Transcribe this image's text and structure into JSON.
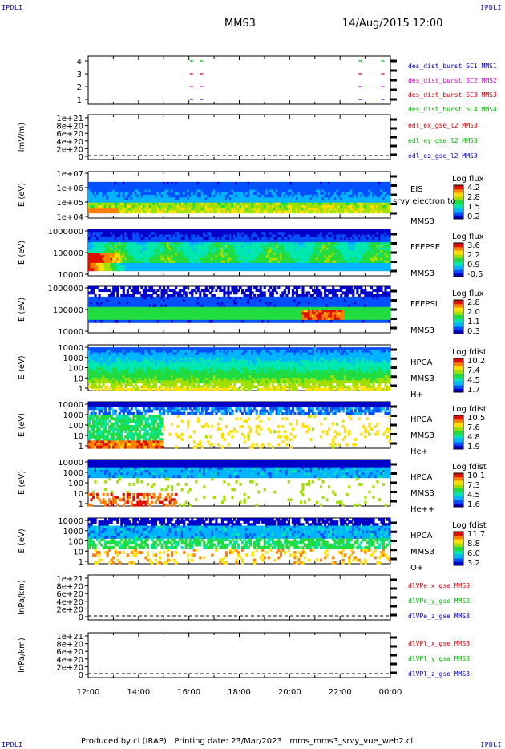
{
  "corners": {
    "tl": "IPDLI",
    "tr": "IPDLI",
    "bl": "IPDLI",
    "br": "IPDLI"
  },
  "header": {
    "spacecraft": "MMS3",
    "datetime": "14/Aug/2015 12:00"
  },
  "footer": {
    "text": "Produced by cl (IRAP)   Printing date: 23/Mar/2023   mms_mms3_srvy_vue_web2.cl"
  },
  "x_axis": {
    "ticks": [
      "12:00",
      "14:00",
      "16:00",
      "18:00",
      "20:00",
      "22:00",
      "00:00"
    ]
  },
  "colors": {
    "sc1": "#0000c0",
    "sc2": "#c000c0",
    "sc3": "#d00000",
    "sc4": "#00b000",
    "spectrogram": [
      "#0000c8",
      "#0050ff",
      "#00b4ff",
      "#00e8b0",
      "#20dc40",
      "#a0e000",
      "#ffe000",
      "#ff8000",
      "#e01000"
    ]
  },
  "chart_data": [
    {
      "type": "scatter",
      "panel": "burst",
      "yticks": [
        "4",
        "3",
        "2",
        "1"
      ],
      "legend": [
        {
          "label": "des_dist_burst SC1 MMS1",
          "color": "#0000c0"
        },
        {
          "label": "des_dist_burst SC2 MMS2",
          "color": "#c000c0"
        },
        {
          "label": "des_dist_burst SC3 MMS3",
          "color": "#d00000"
        },
        {
          "label": "des_dist_burst SC4 MMS4",
          "color": "#00b000"
        }
      ],
      "series": [
        {
          "level": 4,
          "color": "#00b000",
          "x_hours": [
            16.1,
            16.5,
            22.8,
            23.7
          ]
        },
        {
          "level": 3,
          "color": "#d00000",
          "x_hours": [
            16.1,
            16.5,
            22.8,
            23.7
          ]
        },
        {
          "level": 2,
          "color": "#c000c0",
          "x_hours": [
            16.1,
            16.5,
            22.8,
            23.7
          ]
        },
        {
          "level": 1,
          "color": "#0000c0",
          "x_hours": [
            16.1,
            16.5,
            22.8,
            23.7
          ]
        }
      ]
    },
    {
      "type": "line",
      "panel": "edl_e",
      "ylabel": "lmV/m)",
      "yticks": [
        "1e+21",
        "8e+20",
        "6e+20",
        "4e+20",
        "2e+20",
        "0"
      ],
      "legend": [
        {
          "label": "edl_ex_gse_l2 MMS3",
          "color": "#d00000"
        },
        {
          "label": "edl_ey_gse_l2 MMS3",
          "color": "#00b000"
        },
        {
          "label": "edl_ez_gse_l2 MMS3",
          "color": "#0000c0"
        }
      ]
    },
    {
      "type": "heatmap",
      "panel": "eis",
      "ylabel": "E (eV)",
      "yticks": [
        "1e+07",
        "1e+06",
        "1e+05",
        "1e+04"
      ],
      "labels": [
        "EIS",
        "srvy electron to",
        "MMS3"
      ],
      "colorbar": {
        "title": "Log flux",
        "ticks": [
          "4.2",
          "2.8",
          "1.5",
          "0.2"
        ]
      }
    },
    {
      "type": "heatmap",
      "panel": "feepse",
      "ylabel": "E (eV)",
      "yticks": [
        "1000000",
        "100000",
        "10000"
      ],
      "labels": [
        "FEEPSE",
        "MMS3"
      ],
      "colorbar": {
        "title": "Log flux",
        "ticks": [
          "3.6",
          "2.2",
          "0.9",
          "-0.5"
        ]
      }
    },
    {
      "type": "heatmap",
      "panel": "feepsi",
      "ylabel": "E (eV)",
      "yticks": [
        "1000000",
        "100000",
        "10000"
      ],
      "labels": [
        "FEEPSI",
        "MMS3"
      ],
      "colorbar": {
        "title": "Log flux",
        "ticks": [
          "2.8",
          "2.0",
          "1.1",
          "0.3"
        ]
      }
    },
    {
      "type": "heatmap",
      "panel": "hpca_h",
      "ylabel": "E (eV)",
      "yticks": [
        "10000",
        "1000",
        "100",
        "10",
        "1"
      ],
      "labels": [
        "HPCA",
        "MMS3",
        "H+"
      ],
      "colorbar": {
        "title": "Log fdist",
        "ticks": [
          "10.2",
          "7.4",
          "4.5",
          "1.7"
        ]
      }
    },
    {
      "type": "heatmap",
      "panel": "hpca_he",
      "ylabel": "E (eV)",
      "yticks": [
        "10000",
        "1000",
        "100",
        "10",
        "1"
      ],
      "labels": [
        "HPCA",
        "MMS3",
        "He+"
      ],
      "colorbar": {
        "title": "Log fdist",
        "ticks": [
          "10.5",
          "7.6",
          "4.8",
          "1.9"
        ]
      }
    },
    {
      "type": "heatmap",
      "panel": "hpca_hepp",
      "ylabel": "E (eV)",
      "yticks": [
        "10000",
        "1000",
        "100",
        "10",
        "1"
      ],
      "labels": [
        "HPCA",
        "MMS3",
        "He++"
      ],
      "colorbar": {
        "title": "Log fdist",
        "ticks": [
          "10.1",
          "7.3",
          "4.5",
          "1.6"
        ]
      }
    },
    {
      "type": "heatmap",
      "panel": "hpca_o",
      "ylabel": "E (eV)",
      "yticks": [
        "10000",
        "1000",
        "100",
        "10",
        "1"
      ],
      "labels": [
        "HPCA",
        "MMS3",
        "O+"
      ],
      "colorbar": {
        "title": "Log fdist",
        "ticks": [
          "11.7",
          "8.8",
          "6.0",
          "3.2"
        ]
      }
    },
    {
      "type": "line",
      "panel": "divpe",
      "ylabel": "lnPa/km)",
      "yticks": [
        "1e+21",
        "8e+20",
        "6e+20",
        "4e+20",
        "2e+20",
        "0"
      ],
      "legend": [
        {
          "label": "dlVPe_x_gse MMS3",
          "color": "#d00000"
        },
        {
          "label": "dlVPe_y_gse MMS3",
          "color": "#00b000"
        },
        {
          "label": "dlVPe_z_gse MMS3",
          "color": "#0000c0"
        }
      ]
    },
    {
      "type": "line",
      "panel": "divpi",
      "ylabel": "lnPa/km)",
      "yticks": [
        "1e+21",
        "8e+20",
        "6e+20",
        "4e+20",
        "2e+20",
        "0"
      ],
      "legend": [
        {
          "label": "dlVPl_x_gse MMS3",
          "color": "#d00000"
        },
        {
          "label": "dlVPl_y_gse MMS3",
          "color": "#00b000"
        },
        {
          "label": "dlVPl_z_gse MMS3",
          "color": "#0000c0"
        }
      ]
    }
  ]
}
